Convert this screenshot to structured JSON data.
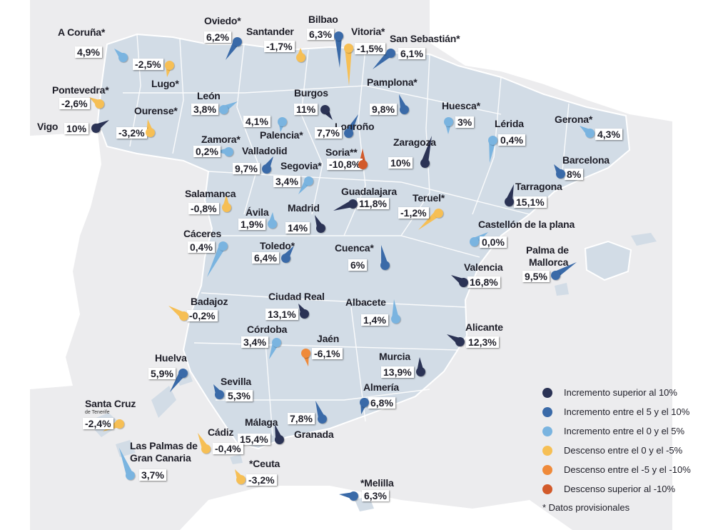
{
  "colors": {
    "inc_over_10": "#2b3355",
    "inc_5_10": "#3a6aa8",
    "inc_0_5": "#7ab4e0",
    "dec_0_5": "#f6bf55",
    "dec_5_10": "#ef8a3a",
    "dec_over_10": "#d25a2a",
    "land": "#d2dce6",
    "sea": "#ececee"
  },
  "legend": {
    "items": [
      {
        "label": "Incremento superior al 10%",
        "color": "#2b3355"
      },
      {
        "label": "Incremento entre el 5 y el 10%",
        "color": "#3a6aa8"
      },
      {
        "label": "Incremento entre el 0 y el 5%",
        "color": "#7ab4e0"
      },
      {
        "label": "Descenso entre el 0 y el -5%",
        "color": "#f6bf55"
      },
      {
        "label": "Descenso entre el -5 y el -10%",
        "color": "#ef8a3a"
      },
      {
        "label": "Descenso superior al -10%",
        "color": "#d25a2a"
      }
    ],
    "note": "* Datos provisionales"
  },
  "cities": [
    {
      "id": "a-coruna",
      "name": "A Coruña*",
      "value": "4,9%",
      "cat": "inc_0_5"
    },
    {
      "id": "oviedo",
      "name": "Oviedo*",
      "value": "6,2%",
      "cat": "inc_5_10"
    },
    {
      "id": "santander",
      "name": "Santander",
      "value": "-1,7%",
      "cat": "dec_0_5"
    },
    {
      "id": "bilbao",
      "name": "Bilbao",
      "value": "6,3%",
      "cat": "inc_5_10"
    },
    {
      "id": "vitoria",
      "name": "Vitoria*",
      "value": "-1,5%",
      "cat": "dec_0_5"
    },
    {
      "id": "san-sebastian",
      "name": "San Sebastián*",
      "value": "6,1%",
      "cat": "inc_5_10"
    },
    {
      "id": "lugo",
      "name": "Lugo*",
      "value": "-2,5%",
      "cat": "dec_0_5"
    },
    {
      "id": "pontevedra",
      "name": "Pontevedra*",
      "value": "-2,6%",
      "cat": "dec_0_5"
    },
    {
      "id": "leon",
      "name": "León",
      "value": "3,8%",
      "cat": "inc_0_5"
    },
    {
      "id": "burgos",
      "name": "Burgos",
      "value": "11%",
      "cat": "inc_over_10"
    },
    {
      "id": "pamplona",
      "name": "Pamplona*",
      "value": "9,8%",
      "cat": "inc_5_10"
    },
    {
      "id": "vigo",
      "name": "Vigo",
      "value": "10%",
      "cat": "inc_over_10"
    },
    {
      "id": "ourense",
      "name": "Ourense*",
      "value": "-3,2%",
      "cat": "dec_0_5"
    },
    {
      "id": "palencia",
      "name": "Palencia*",
      "value": "4,1%",
      "cat": "inc_0_5"
    },
    {
      "id": "logrono",
      "name": "Logroño",
      "value": "7,7%",
      "cat": "inc_5_10"
    },
    {
      "id": "huesca",
      "name": "Huesca*",
      "value": "3%",
      "cat": "inc_0_5"
    },
    {
      "id": "lerida",
      "name": "Lérida",
      "value": "0,4%",
      "cat": "inc_0_5"
    },
    {
      "id": "gerona",
      "name": "Gerona*",
      "value": "4,3%",
      "cat": "inc_0_5"
    },
    {
      "id": "zamora",
      "name": "Zamora*",
      "value": "0,2%",
      "cat": "inc_0_5"
    },
    {
      "id": "valladolid",
      "name": "Valladolid",
      "value": "9,7%",
      "cat": "inc_5_10"
    },
    {
      "id": "soria",
      "name": "Soria**",
      "value": "-10,8%",
      "cat": "dec_over_10"
    },
    {
      "id": "zaragoza",
      "name": "Zaragoza",
      "value": "10%",
      "cat": "inc_over_10"
    },
    {
      "id": "barcelona",
      "name": "Barcelona",
      "value": "8%",
      "cat": "inc_5_10"
    },
    {
      "id": "segovia",
      "name": "Segovia*",
      "value": "3,4%",
      "cat": "inc_0_5"
    },
    {
      "id": "guadalajara",
      "name": "Guadalajara",
      "value": "11,8%",
      "cat": "inc_over_10"
    },
    {
      "id": "tarragona",
      "name": "Tarragona",
      "value": "15,1%",
      "cat": "inc_over_10"
    },
    {
      "id": "salamanca",
      "name": "Salamanca",
      "value": "-0,8%",
      "cat": "dec_0_5"
    },
    {
      "id": "teruel",
      "name": "Teruel*",
      "value": "-1,2%",
      "cat": "dec_0_5"
    },
    {
      "id": "avila",
      "name": "Ávila",
      "value": "1,9%",
      "cat": "inc_0_5"
    },
    {
      "id": "madrid",
      "name": "Madrid",
      "value": "14%",
      "cat": "inc_over_10"
    },
    {
      "id": "castellon",
      "name": "Castellón de la plana",
      "value": "0,0%",
      "cat": "inc_0_5"
    },
    {
      "id": "caceres",
      "name": "Cáceres",
      "value": "0,4%",
      "cat": "inc_0_5"
    },
    {
      "id": "toledo",
      "name": "Toledo*",
      "value": "6,4%",
      "cat": "inc_5_10"
    },
    {
      "id": "cuenca",
      "name": "Cuenca*",
      "value": "6%",
      "cat": "inc_5_10"
    },
    {
      "id": "palma",
      "name": "Palma de Mallorca",
      "value": "9,5%",
      "cat": "inc_5_10"
    },
    {
      "id": "valencia",
      "name": "Valencia",
      "value": "16,8%",
      "cat": "inc_over_10"
    },
    {
      "id": "badajoz",
      "name": "Badajoz",
      "value": "-0,2%",
      "cat": "dec_0_5"
    },
    {
      "id": "ciudad-real",
      "name": "Ciudad Real",
      "value": "13,1%",
      "cat": "inc_over_10"
    },
    {
      "id": "albacete",
      "name": "Albacete",
      "value": "1,4%",
      "cat": "inc_0_5"
    },
    {
      "id": "alicante",
      "name": "Alicante",
      "value": "12,3%",
      "cat": "inc_over_10"
    },
    {
      "id": "cordoba",
      "name": "Córdoba",
      "value": "3,4%",
      "cat": "inc_0_5"
    },
    {
      "id": "jaen",
      "name": "Jaén",
      "value": "-6,1%",
      "cat": "dec_5_10"
    },
    {
      "id": "huelva",
      "name": "Huelva",
      "value": "5,9%",
      "cat": "inc_5_10"
    },
    {
      "id": "murcia",
      "name": "Murcia",
      "value": "13,9%",
      "cat": "inc_over_10"
    },
    {
      "id": "sevilla",
      "name": "Sevilla",
      "value": "5,3%",
      "cat": "inc_5_10"
    },
    {
      "id": "almeria",
      "name": "Almería",
      "value": "6,8%",
      "cat": "inc_5_10"
    },
    {
      "id": "santa-cruz",
      "name": "Santa Cruz",
      "sub": "de Tenerife",
      "value": "-2,4%",
      "cat": "dec_0_5"
    },
    {
      "id": "granada",
      "name": "Granada",
      "value": "7,8%",
      "cat": "inc_5_10"
    },
    {
      "id": "malaga",
      "name": "Málaga",
      "value": "15,4%",
      "cat": "inc_over_10"
    },
    {
      "id": "cadiz",
      "name": "Cádiz",
      "value": "-0,4%",
      "cat": "dec_0_5"
    },
    {
      "id": "las-palmas",
      "name": "Las Palmas de Gran Canaria",
      "value": "3,7%",
      "cat": "inc_0_5"
    },
    {
      "id": "ceuta",
      "name": "*Ceuta",
      "value": "-3,2%",
      "cat": "dec_0_5"
    },
    {
      "id": "melilla",
      "name": "*Melilla",
      "value": "6,3%",
      "cat": "inc_5_10"
    }
  ]
}
